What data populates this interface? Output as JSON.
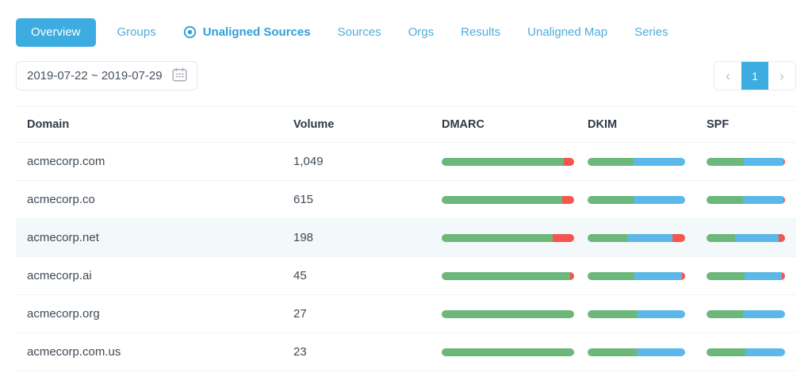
{
  "colors": {
    "accent": "#3dace0",
    "tab_link": "#4fadde",
    "tab_emphasized": "#2e9fd8",
    "bar_green": "#6cb87a",
    "bar_blue": "#5cb8e8",
    "bar_red": "#f4564f",
    "row_highlight": "#f3f8fb"
  },
  "tabs": [
    {
      "label": "Overview",
      "active": true
    },
    {
      "label": "Groups"
    },
    {
      "label": "Unaligned Sources",
      "emphasized": true,
      "icon": "target-icon"
    },
    {
      "label": "Sources"
    },
    {
      "label": "Orgs"
    },
    {
      "label": "Results"
    },
    {
      "label": "Unaligned Map"
    },
    {
      "label": "Series"
    }
  ],
  "toolbar": {
    "date_range": "2019-07-22 ~ 2019-07-29",
    "pagination": {
      "prev": "‹",
      "page": "1",
      "next": "›"
    }
  },
  "table": {
    "columns": [
      "Domain",
      "Volume",
      "DMARC",
      "DKIM",
      "SPF"
    ],
    "rows": [
      {
        "domain": "acmecorp.com",
        "volume": "1,049",
        "highlighted": false,
        "dmarc": {
          "green": 92,
          "blue": 0,
          "red": 8
        },
        "dkim": {
          "green": 47,
          "blue": 53,
          "red": 0
        },
        "spf": {
          "green": 47,
          "blue": 51,
          "red": 2
        }
      },
      {
        "domain": "acmecorp.co",
        "volume": "615",
        "highlighted": false,
        "dmarc": {
          "green": 91,
          "blue": 0,
          "red": 9
        },
        "dkim": {
          "green": 47,
          "blue": 53,
          "red": 0
        },
        "spf": {
          "green": 46,
          "blue": 52,
          "red": 2
        }
      },
      {
        "domain": "acmecorp.net",
        "volume": "198",
        "highlighted": true,
        "dmarc": {
          "green": 84,
          "blue": 0,
          "red": 16
        },
        "dkim": {
          "green": 41,
          "blue": 46,
          "red": 13
        },
        "spf": {
          "green": 36,
          "blue": 56,
          "red": 8
        }
      },
      {
        "domain": "acmecorp.ai",
        "volume": "45",
        "highlighted": false,
        "dmarc": {
          "green": 97,
          "blue": 0,
          "red": 3
        },
        "dkim": {
          "green": 48,
          "blue": 49,
          "red": 3
        },
        "spf": {
          "green": 48,
          "blue": 48,
          "red": 4
        }
      },
      {
        "domain": "acmecorp.org",
        "volume": "27",
        "highlighted": false,
        "dmarc": {
          "green": 100,
          "blue": 0,
          "red": 0
        },
        "dkim": {
          "green": 50,
          "blue": 50,
          "red": 0
        },
        "spf": {
          "green": 46,
          "blue": 54,
          "red": 0
        }
      },
      {
        "domain": "acmecorp.com.us",
        "volume": "23",
        "highlighted": false,
        "dmarc": {
          "green": 100,
          "blue": 0,
          "red": 0
        },
        "dkim": {
          "green": 50,
          "blue": 50,
          "red": 0
        },
        "spf": {
          "green": 49,
          "blue": 51,
          "red": 0
        }
      }
    ]
  }
}
